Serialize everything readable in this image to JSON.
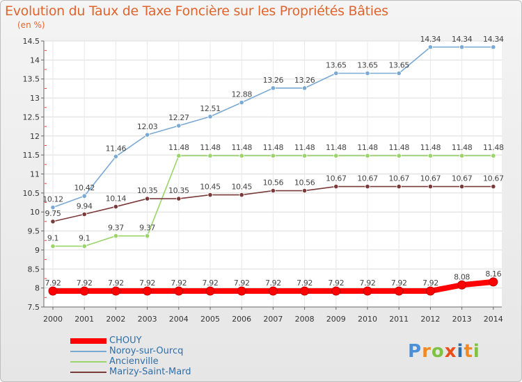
{
  "header": {
    "title": "Evolution du Taux de Taxe Foncière sur les Propriétés Bâties",
    "subtitle": "(en %)"
  },
  "logo": {
    "text": "Proxiti",
    "letters": [
      "P",
      "r",
      "o",
      "x",
      "i",
      "t",
      "i"
    ],
    "colors": [
      "#4a90d9",
      "#f08a24",
      "#7dc243",
      "#e84e1b",
      "#2f6ea8",
      "#f08a24",
      "#7dc243"
    ]
  },
  "chart_data": {
    "type": "line",
    "categories": [
      "2000",
      "2001",
      "2002",
      "2003",
      "2004",
      "2005",
      "2006",
      "2007",
      "2008",
      "2009",
      "2010",
      "2011",
      "2012",
      "2013",
      "2014"
    ],
    "ylim": [
      7.5,
      14.5
    ],
    "yticks": [
      "7.5",
      "8",
      "8.5",
      "9",
      "9.5",
      "10",
      "10.5",
      "11",
      "11.5",
      "12",
      "12.5",
      "13",
      "13.5",
      "14",
      "14.5"
    ],
    "grid": true,
    "legend_position": "bottom-left",
    "series": [
      {
        "name": "CHOUY",
        "color": "#ff0000",
        "values": [
          7.92,
          7.92,
          7.92,
          7.92,
          7.92,
          7.92,
          7.92,
          7.92,
          7.92,
          7.92,
          7.92,
          7.92,
          7.92,
          8.08,
          8.16
        ],
        "labels": [
          "7.92",
          "7.92",
          "7.92",
          "7.92",
          "7.92",
          "7.92",
          "7.92",
          "7.92",
          "7.92",
          "7.92",
          "7.92",
          "7.92",
          "7.92",
          "8.08",
          "8.16"
        ]
      },
      {
        "name": "Noroy-sur-Ourcq",
        "color": "#7aa9d4",
        "values": [
          10.12,
          10.42,
          11.46,
          12.03,
          12.27,
          12.51,
          12.88,
          13.26,
          13.26,
          13.65,
          13.65,
          13.65,
          14.34,
          14.34,
          14.34
        ],
        "labels": [
          "10.12",
          "10.42",
          "11.46",
          "12.03",
          "12.27",
          "12.51",
          "12.88",
          "13.26",
          "13.26",
          "13.65",
          "13.65",
          "13.65",
          "14.34",
          "14.34",
          "14.34"
        ]
      },
      {
        "name": "Ancienville",
        "color": "#9ad46a",
        "values": [
          9.1,
          9.1,
          9.37,
          9.37,
          11.48,
          11.48,
          11.48,
          11.48,
          11.48,
          11.48,
          11.48,
          11.48,
          11.48,
          11.48,
          11.48
        ],
        "labels": [
          "9.1",
          "9.1",
          "9.37",
          "9.37",
          "11.48",
          "11.48",
          "11.48",
          "11.48",
          "11.48",
          "11.48",
          "11.48",
          "11.48",
          "11.48",
          "11.48",
          "11.48"
        ]
      },
      {
        "name": "Marizy-Saint-Mard",
        "color": "#7a3a3a",
        "values": [
          9.75,
          9.94,
          10.14,
          10.35,
          10.35,
          10.45,
          10.45,
          10.56,
          10.56,
          10.67,
          10.67,
          10.67,
          10.67,
          10.67,
          10.67
        ],
        "labels": [
          "9.75",
          "9.94",
          "10.14",
          "10.35",
          "10.35",
          "10.45",
          "10.45",
          "10.56",
          "10.56",
          "10.67",
          "10.67",
          "10.67",
          "10.67",
          "10.67",
          "10.67"
        ]
      }
    ]
  }
}
